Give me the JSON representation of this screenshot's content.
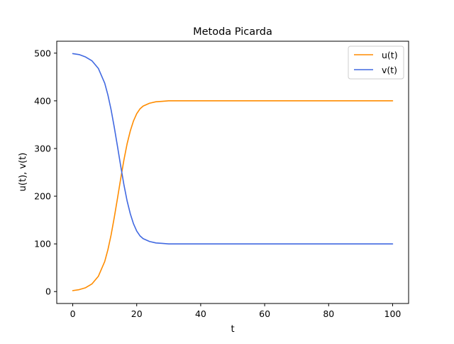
{
  "chart_data": {
    "type": "line",
    "title": "Metoda Picarda",
    "xlabel": "t",
    "ylabel": "u(t), v(t)",
    "xlim": [
      -5,
      105
    ],
    "ylim": [
      -25,
      525
    ],
    "xticks": [
      0,
      20,
      40,
      60,
      80,
      100
    ],
    "yticks": [
      0,
      100,
      200,
      300,
      400,
      500
    ],
    "grid": false,
    "legend_position": "top-right",
    "x": [
      0,
      2,
      4,
      6,
      8,
      10,
      11,
      12,
      13,
      14,
      15,
      16,
      17,
      18,
      19,
      20,
      21,
      22,
      24,
      26,
      28,
      30,
      35,
      40,
      50,
      60,
      70,
      80,
      90,
      100
    ],
    "series": [
      {
        "name": "u(t)",
        "color": "#ff8c00",
        "values": [
          2,
          4,
          8,
          16,
          32,
          63,
          88,
          119,
          156,
          196,
          237,
          276,
          310,
          337,
          358,
          373,
          383,
          389,
          395,
          398,
          399,
          400,
          400,
          400,
          400,
          400,
          400,
          400,
          400,
          400
        ]
      },
      {
        "name": "v(t)",
        "color": "#4169e1",
        "values": [
          499,
          497,
          492,
          484,
          468,
          437,
          412,
          381,
          344,
          304,
          263,
          224,
          190,
          163,
          142,
          127,
          117,
          111,
          105,
          102,
          101,
          100,
          100,
          100,
          100,
          100,
          100,
          100,
          100,
          100
        ]
      }
    ]
  }
}
